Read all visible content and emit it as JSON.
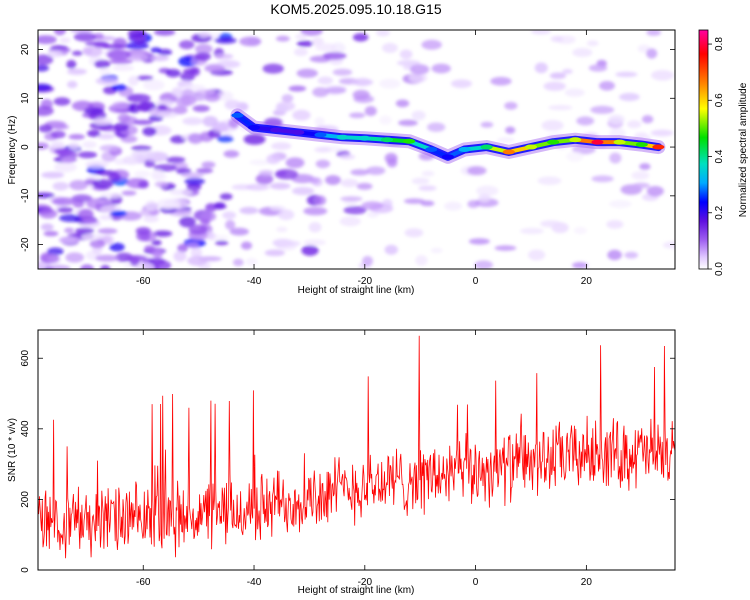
{
  "figure": {
    "title": "KOM5.2025.095.10.18.G15"
  },
  "chart_data": [
    {
      "type": "heatmap",
      "title": "KOM5.2025.095.10.18.G15",
      "xlabel": "Height of straight line (km)",
      "ylabel": "Frequency (Hz)",
      "xlim": [
        -79,
        36
      ],
      "ylim": [
        -25,
        24
      ],
      "xticks": [
        -60,
        -40,
        -20,
        0,
        20
      ],
      "yticks": [
        -20,
        -10,
        0,
        10,
        20
      ],
      "colorbar": {
        "label": "Normalized spectral amplitude",
        "range": [
          0,
          0.85
        ],
        "ticks": [
          0.0,
          0.2,
          0.4,
          0.6,
          0.8
        ],
        "tick_labels": [
          "0.0",
          "0.2",
          "0.4",
          "0.6",
          "0.8"
        ],
        "colormap": [
          "#ffffff",
          "#e0c8ff",
          "#a060f0",
          "#6010e0",
          "#0000ff",
          "#00aaff",
          "#00e0c0",
          "#00e000",
          "#ffff00",
          "#ff8000",
          "#ff0000",
          "#ff00a0"
        ]
      },
      "ridge": {
        "x": [
          -43,
          -40,
          -36,
          -32,
          -28,
          -24,
          -20,
          -16,
          -12,
          -8,
          -5,
          -2,
          2,
          6,
          10,
          14,
          18,
          22,
          26,
          30,
          33
        ],
        "y": [
          6.5,
          4,
          3.5,
          3,
          2.5,
          2,
          1.8,
          1.5,
          1.2,
          -0.5,
          -2,
          -0.5,
          0,
          -1,
          0,
          1,
          1.5,
          1,
          1,
          0.5,
          0
        ],
        "amplitude": [
          0.35,
          0.3,
          0.25,
          0.25,
          0.35,
          0.45,
          0.45,
          0.5,
          0.55,
          0.35,
          0.3,
          0.4,
          0.5,
          0.7,
          0.6,
          0.55,
          0.6,
          0.8,
          0.6,
          0.55,
          0.75
        ]
      }
    },
    {
      "type": "line",
      "xlabel": "Height of straight line (km)",
      "ylabel": "SNR (10 * v/v)",
      "xlim": [
        -79,
        36
      ],
      "ylim": [
        0,
        680
      ],
      "xticks": [
        -60,
        -40,
        -20,
        0,
        20
      ],
      "yticks": [
        0,
        200,
        400,
        600
      ],
      "series": [
        {
          "color": "#ff0000",
          "trend_x": [
            -79,
            -60,
            -40,
            -20,
            0,
            20,
            36
          ],
          "trend_y": [
            145,
            140,
            170,
            240,
            280,
            330,
            330
          ],
          "noise_amplitude": 85,
          "num_points": 900
        }
      ]
    }
  ]
}
